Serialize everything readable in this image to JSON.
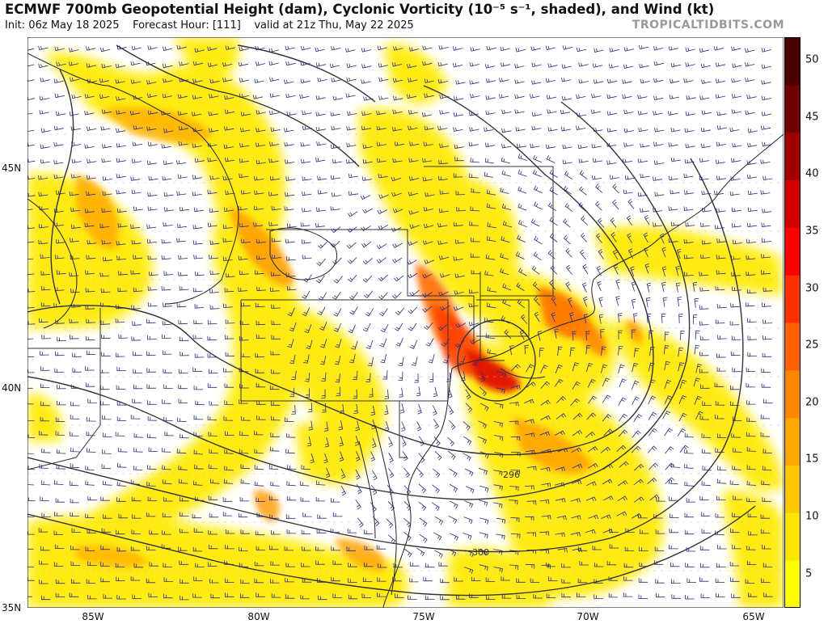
{
  "header": {
    "title": "ECMWF 700mb Geopotential Height (dam), Cyclonic Vorticity (10⁻⁵ s⁻¹, shaded), and Wind (kt)",
    "init": "Init: 06z May 18 2025",
    "forecast_hour": "Forecast Hour: [111]",
    "valid": "valid at 21z Thu, May 22 2025",
    "brand": "TROPICALTIDBITS.COM"
  },
  "axes": {
    "lat_labels": [
      "45N",
      "40N",
      "35N"
    ],
    "lon_labels": [
      "85W",
      "80W",
      "75W",
      "70W",
      "65W"
    ]
  },
  "contours": {
    "labels": [
      "296",
      "300"
    ],
    "color": "#333333"
  },
  "colorbar": {
    "ticks": [
      "50",
      "45",
      "40",
      "35",
      "30",
      "25",
      "20",
      "15",
      "10",
      "5"
    ],
    "min": 2,
    "max": 52,
    "colors": [
      "#ffff00",
      "#ffe400",
      "#ffc800",
      "#ffa800",
      "#ff8800",
      "#ff6000",
      "#ff3000",
      "#ff0000",
      "#d40000",
      "#a00000",
      "#700000",
      "#4a0000"
    ]
  },
  "wind_barb_color": "#2a2a7a"
}
